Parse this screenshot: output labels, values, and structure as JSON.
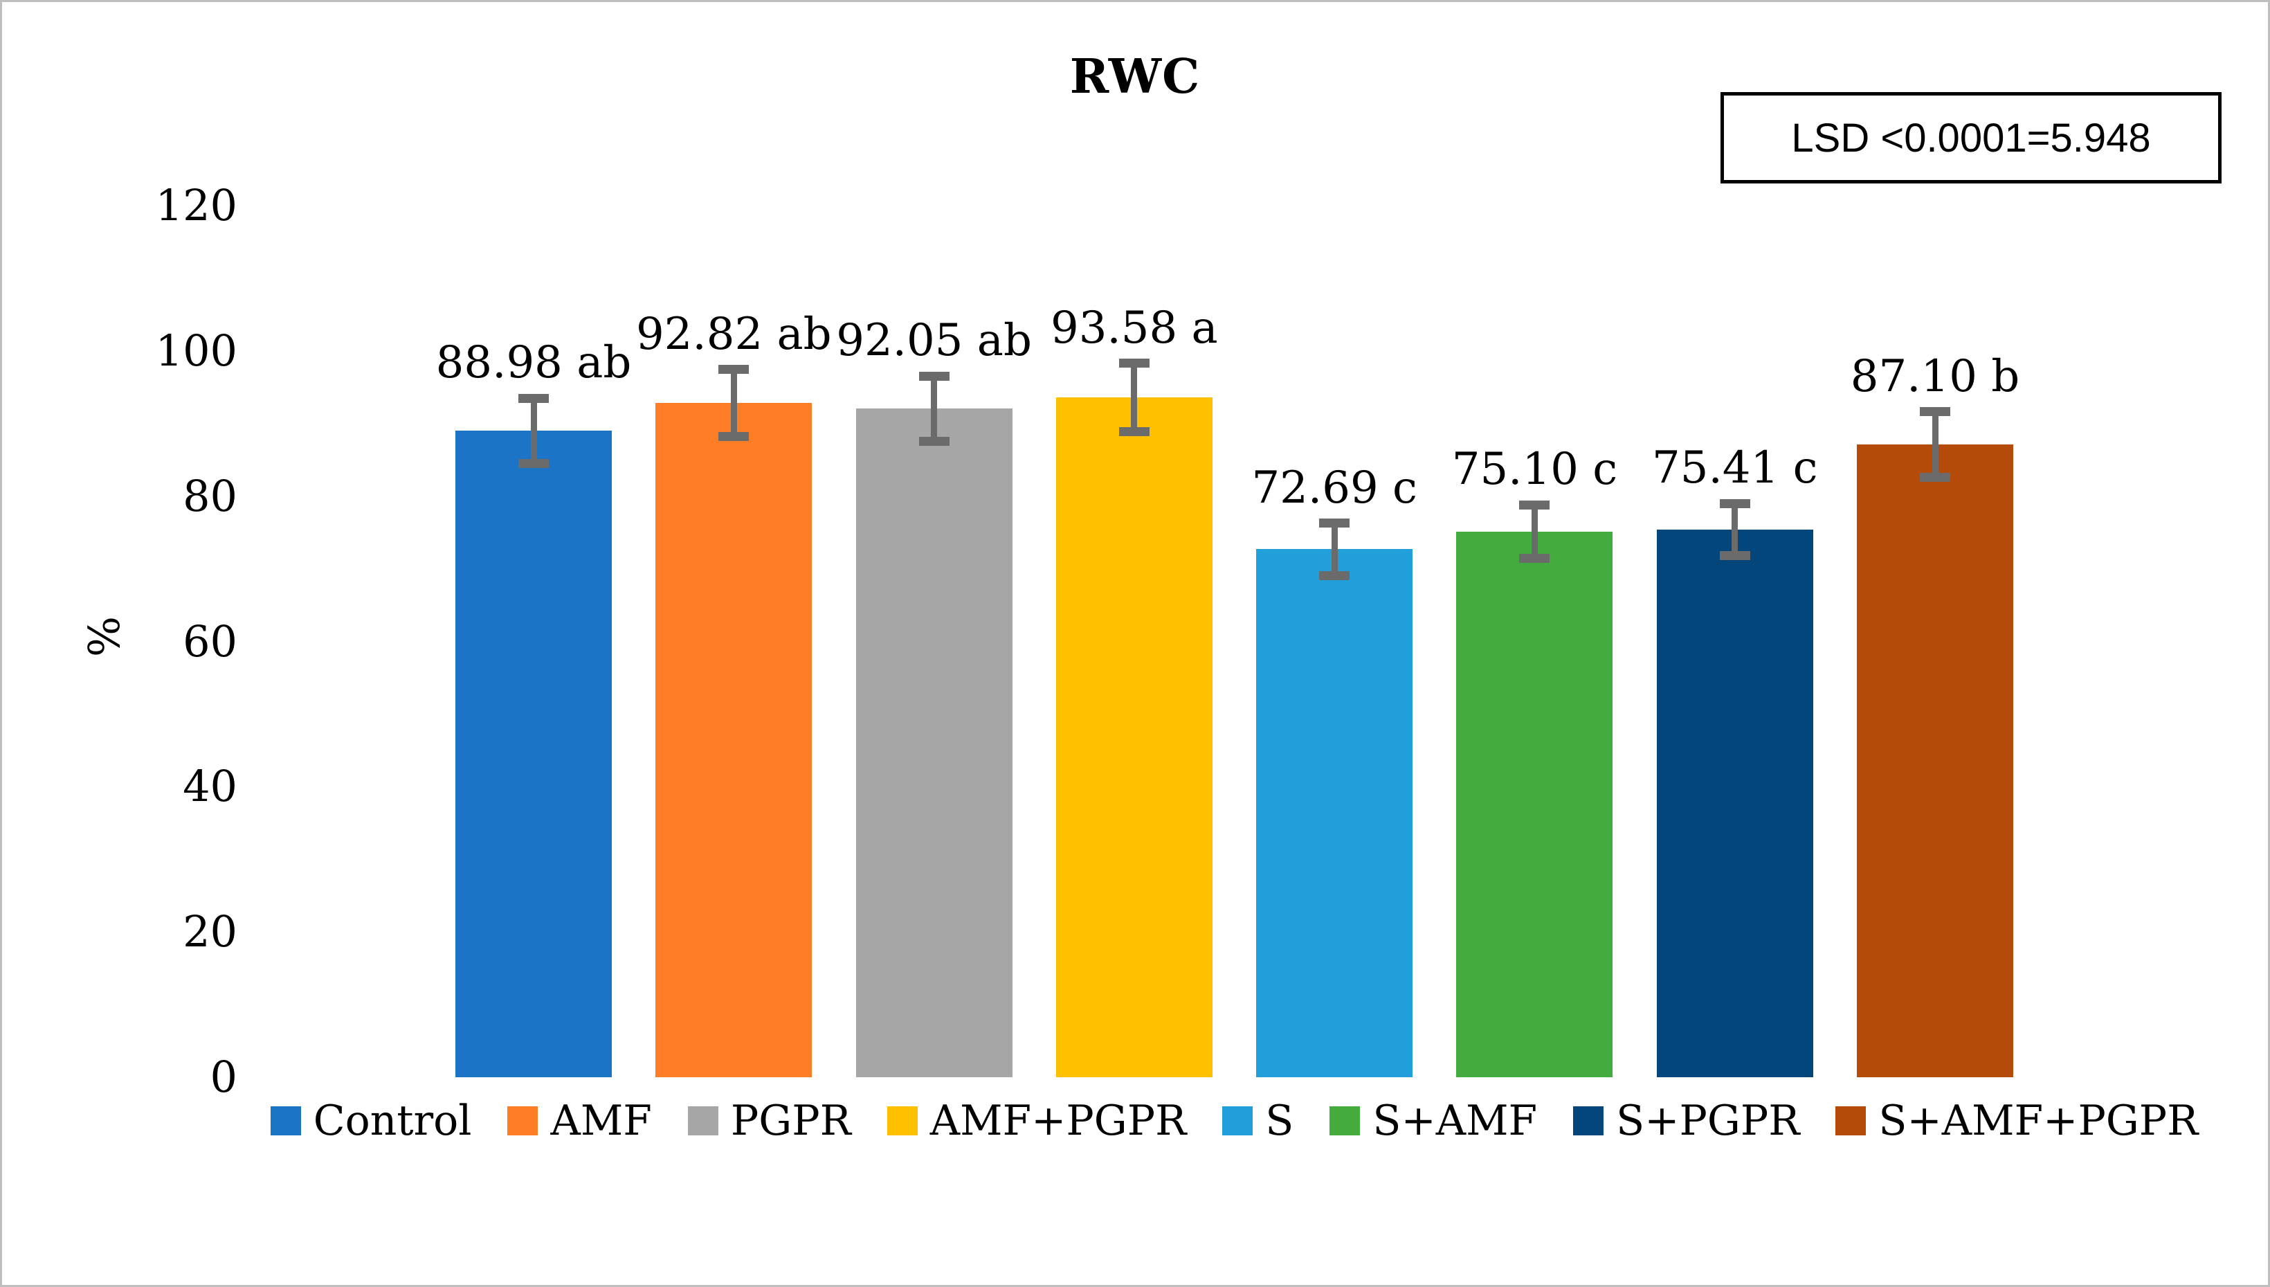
{
  "figure": {
    "title": "RWC",
    "lsd_label": "LSD <0.0001=5.948",
    "ylabel": "%"
  },
  "chart_data": {
    "type": "bar",
    "title": "RWC",
    "xlabel": "",
    "ylabel": "%",
    "ylim": [
      0,
      120
    ],
    "yticks": [
      0,
      20,
      40,
      60,
      80,
      100,
      120
    ],
    "grid": false,
    "legend_position": "bottom",
    "annotation": "LSD <0.0001=5.948",
    "categories": [
      "Control",
      "AMF",
      "PGPR",
      "AMF+PGPR",
      "S",
      "S+AMF",
      "S+PGPR",
      "S+AMF+PGPR"
    ],
    "values": [
      88.98,
      92.82,
      92.05,
      93.58,
      72.69,
      75.1,
      75.41,
      87.1
    ],
    "errors": [
      4.5,
      4.6,
      4.5,
      4.7,
      3.6,
      3.7,
      3.6,
      4.5
    ],
    "bar_labels": [
      "88.98 ab",
      "92.82 ab",
      "92.05 ab",
      "93.58 a",
      "72.69 c",
      "75.10 c",
      "75.41 c",
      "87.10 b"
    ],
    "colors": [
      "#1b74c5",
      "#fd7e27",
      "#a6a6a6",
      "#ffc000",
      "#219fdb",
      "#44ac3e",
      "#03467b",
      "#b54b08"
    ],
    "error_bar_color": "#6b6b6b"
  }
}
